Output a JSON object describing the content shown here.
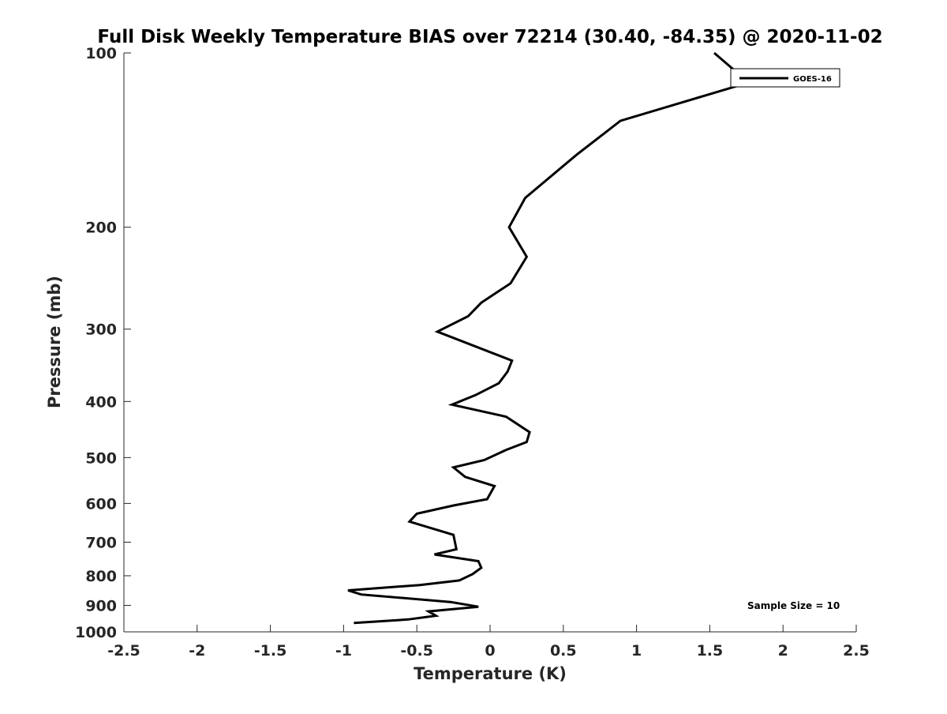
{
  "chart_data": {
    "type": "line",
    "title": "Full Disk Weekly Temperature BIAS over 72214 (30.40, -84.35) @ 2020-11-02",
    "xlabel": "Temperature (K)",
    "ylabel": "Pressure (mb)",
    "xlim": [
      -2.5,
      2.5
    ],
    "ylim": [
      1000,
      100
    ],
    "y_scale": "log",
    "x_ticks": [
      -2.5,
      -2,
      -1.5,
      -1,
      -0.5,
      0,
      0.5,
      1,
      1.5,
      2,
      2.5
    ],
    "x_tick_labels": [
      "-2.5",
      "-2",
      "-1.5",
      "-1",
      "-0.5",
      "0",
      "0.5",
      "1",
      "1.5",
      "2",
      "2.5"
    ],
    "y_ticks": [
      100,
      200,
      300,
      400,
      500,
      600,
      700,
      800,
      900,
      1000
    ],
    "y_tick_labels": [
      "100",
      "200",
      "300",
      "400",
      "500",
      "600",
      "700",
      "800",
      "900",
      "1000"
    ],
    "grid": false,
    "legend_position": "top-right",
    "annotation": "Sample Size = 10",
    "series": [
      {
        "name": "GOES-16",
        "color": "#000000",
        "points": [
          [
            1.53,
            100
          ],
          [
            1.72,
            110
          ],
          [
            1.74,
            113
          ],
          [
            0.89,
            131
          ],
          [
            0.59,
            150
          ],
          [
            0.24,
            178
          ],
          [
            0.13,
            200
          ],
          [
            0.25,
            225
          ],
          [
            0.14,
            250
          ],
          [
            -0.06,
            270
          ],
          [
            -0.15,
            285
          ],
          [
            -0.36,
            303
          ],
          [
            0.15,
            340
          ],
          [
            0.12,
            355
          ],
          [
            0.06,
            372
          ],
          [
            -0.1,
            390
          ],
          [
            -0.26,
            405
          ],
          [
            0.11,
            425
          ],
          [
            0.27,
            452
          ],
          [
            0.25,
            470
          ],
          [
            0.11,
            485
          ],
          [
            -0.04,
            505
          ],
          [
            -0.25,
            520
          ],
          [
            -0.17,
            540
          ],
          [
            0.03,
            560
          ],
          [
            -0.02,
            590
          ],
          [
            -0.25,
            605
          ],
          [
            -0.5,
            625
          ],
          [
            -0.55,
            645
          ],
          [
            -0.25,
            680
          ],
          [
            -0.24,
            700
          ],
          [
            -0.23,
            720
          ],
          [
            -0.38,
            735
          ],
          [
            -0.08,
            755
          ],
          [
            -0.06,
            775
          ],
          [
            -0.12,
            795
          ],
          [
            -0.21,
            815
          ],
          [
            -0.48,
            830
          ],
          [
            -0.97,
            848
          ],
          [
            -0.88,
            862
          ],
          [
            -0.27,
            888
          ],
          [
            -0.08,
            905
          ],
          [
            -0.42,
            922
          ],
          [
            -0.37,
            938
          ],
          [
            -0.56,
            952
          ],
          [
            -0.93,
            965
          ]
        ]
      }
    ]
  }
}
